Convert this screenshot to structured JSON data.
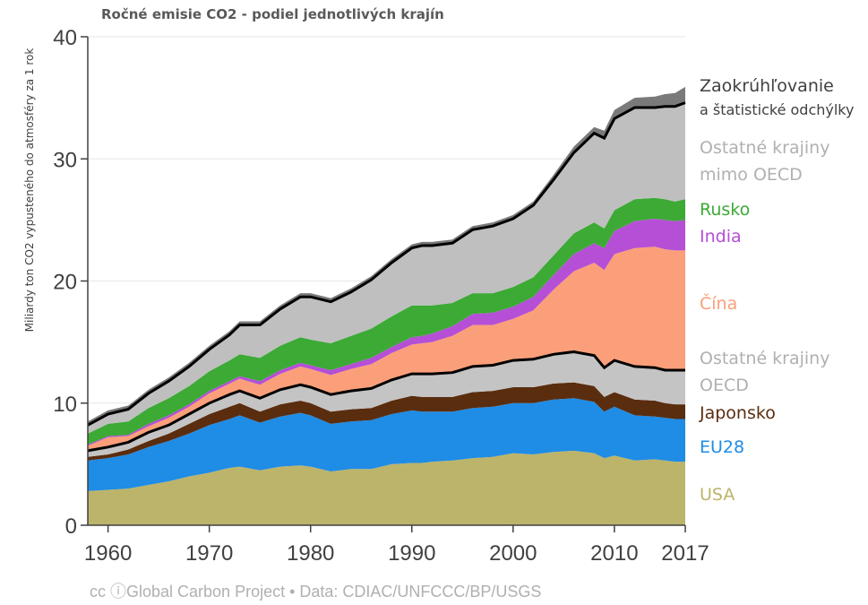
{
  "chart_data": {
    "type": "area",
    "title": "Ročné emisie CO2 - podiel jednotlivých krajín",
    "xlabel": "",
    "ylabel": "Miliardy ton CO2 vypusteného do atmosféry za 1 rok",
    "xlim": [
      1958,
      2017
    ],
    "ylim": [
      0,
      40
    ],
    "y_ticks": [
      "0",
      "10",
      "20",
      "30",
      "40"
    ],
    "x_ticks": [
      "1960",
      "1970",
      "1980",
      "1990",
      "2000",
      "2010",
      "2017"
    ],
    "grid": "horizontal",
    "stacked": true,
    "x": [
      1958,
      1960,
      1962,
      1964,
      1966,
      1968,
      1970,
      1972,
      1973,
      1975,
      1977,
      1979,
      1980,
      1982,
      1984,
      1986,
      1988,
      1990,
      1991,
      1992,
      1994,
      1996,
      1998,
      2000,
      2002,
      2004,
      2006,
      2008,
      2009,
      2010,
      2012,
      2014,
      2015,
      2016,
      2017
    ],
    "series": [
      {
        "name": "USA",
        "color": "#bcb46a",
        "values": [
          2.8,
          2.9,
          3.0,
          3.3,
          3.6,
          4.0,
          4.3,
          4.7,
          4.8,
          4.5,
          4.8,
          4.9,
          4.8,
          4.4,
          4.6,
          4.6,
          5.0,
          5.1,
          5.1,
          5.2,
          5.3,
          5.5,
          5.6,
          5.9,
          5.8,
          6.0,
          6.1,
          5.9,
          5.5,
          5.7,
          5.3,
          5.4,
          5.3,
          5.2,
          5.2
        ]
      },
      {
        "name": "EU28",
        "color": "#1f8ce5",
        "values": [
          2.5,
          2.6,
          2.8,
          3.1,
          3.3,
          3.5,
          3.9,
          4.0,
          4.2,
          3.9,
          4.1,
          4.3,
          4.2,
          3.9,
          3.9,
          4.0,
          4.1,
          4.3,
          4.2,
          4.1,
          4.0,
          4.1,
          4.1,
          4.1,
          4.2,
          4.3,
          4.3,
          4.2,
          3.8,
          4.0,
          3.7,
          3.5,
          3.5,
          3.5,
          3.5
        ]
      },
      {
        "name": "Japonsko",
        "color": "#5a2d0f",
        "values": [
          0.3,
          0.3,
          0.4,
          0.5,
          0.6,
          0.8,
          0.9,
          1.0,
          1.0,
          0.9,
          1.0,
          1.0,
          1.0,
          1.0,
          1.0,
          1.0,
          1.1,
          1.2,
          1.2,
          1.2,
          1.2,
          1.3,
          1.3,
          1.3,
          1.3,
          1.3,
          1.3,
          1.3,
          1.2,
          1.2,
          1.3,
          1.3,
          1.2,
          1.2,
          1.2
        ]
      },
      {
        "name": "Ostatné krajiny OECD",
        "color": "#c4c4c4",
        "values": [
          0.5,
          0.6,
          0.6,
          0.7,
          0.7,
          0.8,
          0.9,
          1.0,
          1.0,
          1.1,
          1.2,
          1.3,
          1.3,
          1.4,
          1.5,
          1.6,
          1.7,
          1.8,
          1.9,
          1.9,
          2.0,
          2.1,
          2.1,
          2.2,
          2.3,
          2.4,
          2.5,
          2.5,
          2.4,
          2.6,
          2.7,
          2.7,
          2.7,
          2.8,
          2.8
        ]
      },
      {
        "name": "Čína",
        "color": "#fb9f7a",
        "values": [
          0.4,
          0.8,
          0.5,
          0.5,
          0.6,
          0.6,
          0.8,
          0.9,
          1.0,
          1.1,
          1.3,
          1.5,
          1.5,
          1.6,
          1.8,
          2.0,
          2.2,
          2.4,
          2.5,
          2.6,
          3.0,
          3.4,
          3.3,
          3.4,
          4.0,
          5.3,
          6.6,
          7.6,
          8.0,
          8.7,
          9.7,
          9.9,
          9.9,
          9.8,
          9.8
        ]
      },
      {
        "name": "India",
        "color": "#b54fd6",
        "values": [
          0.1,
          0.1,
          0.1,
          0.2,
          0.2,
          0.2,
          0.2,
          0.2,
          0.2,
          0.3,
          0.3,
          0.3,
          0.3,
          0.4,
          0.4,
          0.5,
          0.5,
          0.6,
          0.6,
          0.7,
          0.8,
          0.9,
          1.0,
          1.0,
          1.1,
          1.2,
          1.4,
          1.6,
          1.8,
          1.9,
          2.2,
          2.3,
          2.4,
          2.4,
          2.5
        ]
      },
      {
        "name": "Rusko",
        "color": "#3caa35",
        "values": [
          0.9,
          1.0,
          1.1,
          1.3,
          1.4,
          1.5,
          1.6,
          1.7,
          1.8,
          1.9,
          2.0,
          2.1,
          2.1,
          2.2,
          2.3,
          2.4,
          2.5,
          2.6,
          2.5,
          2.3,
          1.9,
          1.7,
          1.6,
          1.6,
          1.6,
          1.6,
          1.7,
          1.7,
          1.6,
          1.7,
          1.8,
          1.7,
          1.7,
          1.6,
          1.7
        ]
      },
      {
        "name": "Ostatné krajiny mimo OECD",
        "color": "#bfbfbf",
        "values": [
          0.7,
          0.8,
          1.0,
          1.2,
          1.4,
          1.6,
          1.8,
          2.1,
          2.4,
          2.7,
          3.0,
          3.3,
          3.5,
          3.4,
          3.6,
          4.0,
          4.4,
          4.7,
          4.9,
          4.9,
          4.9,
          5.2,
          5.5,
          5.6,
          5.9,
          6.2,
          6.6,
          7.3,
          7.4,
          7.5,
          7.5,
          7.4,
          7.6,
          7.8,
          7.9
        ]
      },
      {
        "name": "Zaokrúhľovanie a štatistické odchýlky",
        "color": "#7a7a7a",
        "values": [
          0.3,
          0.3,
          0.3,
          0.3,
          0.3,
          0.3,
          0.3,
          0.3,
          0.3,
          0.3,
          0.3,
          0.3,
          0.3,
          0.3,
          0.3,
          0.3,
          0.3,
          0.3,
          0.3,
          0.3,
          0.3,
          0.3,
          0.3,
          0.3,
          0.3,
          0.4,
          0.5,
          0.5,
          0.6,
          0.7,
          0.8,
          0.9,
          1.0,
          1.1,
          1.3
        ]
      }
    ],
    "legend": [
      {
        "lines": [
          "Zaokrúhľovanie"
        ],
        "sub": "a štatistické odchýlky",
        "color": "#404040"
      },
      {
        "lines": [
          "Ostatné krajiny",
          "mimo OECD"
        ],
        "color": "#b0b0b0"
      },
      {
        "lines": [
          "Rusko"
        ],
        "color": "#3caa35"
      },
      {
        "lines": [
          "India"
        ],
        "color": "#b54fd6"
      },
      {
        "lines": [
          "Čína"
        ],
        "color": "#fb9f7a"
      },
      {
        "lines": [
          "Ostatné krajiny",
          "OECD"
        ],
        "color": "#b0b0b0"
      },
      {
        "lines": [
          "Japonsko"
        ],
        "color": "#5a2d0f"
      },
      {
        "lines": [
          "EU28"
        ],
        "color": "#1f8ce5"
      },
      {
        "lines": [
          "USA"
        ],
        "color": "#bcb46a"
      }
    ]
  },
  "footer": {
    "cc_icons": "cc ⓘ",
    "source": "Global Carbon Project  •  Data: CDIAC/UNFCCC/BP/USGS"
  }
}
